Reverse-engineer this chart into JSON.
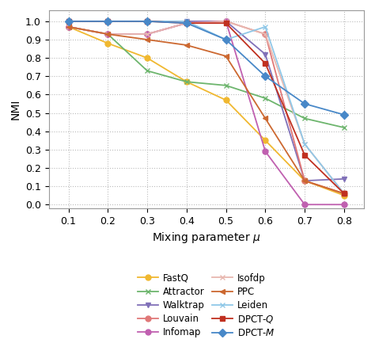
{
  "x": [
    0.1,
    0.2,
    0.3,
    0.4,
    0.5,
    0.6,
    0.7,
    0.8
  ],
  "series_order": [
    "FastQ",
    "Attractor",
    "Walktrap",
    "Louvain",
    "Infomap",
    "Isofdp",
    "PPC",
    "Leiden",
    "DPCT-Q",
    "DPCT-M"
  ],
  "series": {
    "FastQ": [
      0.97,
      0.88,
      0.8,
      0.67,
      0.57,
      0.35,
      0.13,
      0.05
    ],
    "Attractor": [
      0.97,
      0.93,
      0.73,
      0.67,
      0.65,
      0.58,
      0.47,
      0.42
    ],
    "Walktrap": [
      1.0,
      1.0,
      1.0,
      1.0,
      1.0,
      0.82,
      0.13,
      0.14
    ],
    "Louvain": [
      0.97,
      0.93,
      0.93,
      0.99,
      1.0,
      0.93,
      0.13,
      0.06
    ],
    "Infomap": [
      0.97,
      0.93,
      0.93,
      0.99,
      1.0,
      0.29,
      0.0,
      0.0
    ],
    "Isofdp": [
      0.97,
      0.93,
      0.93,
      0.99,
      1.0,
      0.93,
      0.33,
      0.06
    ],
    "PPC": [
      0.97,
      0.93,
      0.9,
      0.87,
      0.81,
      0.47,
      0.13,
      0.06
    ],
    "Leiden": [
      1.0,
      1.0,
      1.0,
      1.0,
      0.9,
      0.97,
      0.33,
      0.06
    ],
    "DPCT-Q": [
      1.0,
      1.0,
      1.0,
      0.99,
      0.99,
      0.77,
      0.27,
      0.06
    ],
    "DPCT-M": [
      1.0,
      1.0,
      1.0,
      0.99,
      0.9,
      0.7,
      0.55,
      0.49
    ]
  },
  "colors": {
    "FastQ": "#f0b830",
    "Attractor": "#6db56d",
    "Walktrap": "#8070b8",
    "Louvain": "#e07878",
    "Infomap": "#c060b0",
    "Isofdp": "#e8b8b0",
    "PPC": "#cc6830",
    "Leiden": "#90c8e8",
    "DPCT-Q": "#c03020",
    "DPCT-M": "#4888c8"
  },
  "markers": {
    "FastQ": "o",
    "Attractor": "x",
    "Walktrap": "v",
    "Louvain": "o",
    "Infomap": "o",
    "Isofdp": "x",
    "PPC": "<",
    "Leiden": "x",
    "DPCT-Q": "s",
    "DPCT-M": "D"
  },
  "legend_labels": {
    "FastQ": "FastQ",
    "Attractor": "Attractor",
    "Walktrap": "Walktrap",
    "Louvain": "Louvain",
    "Infomap": "Infomap",
    "Isofdp": "Isofdp",
    "PPC": "PPC",
    "Leiden": "Leiden",
    "DPCT-Q": "DPCT-$Q$",
    "DPCT-M": "DPCT-$M$"
  },
  "xlabel": "Mixing parameter $\\mu$",
  "ylabel": "NMI",
  "xlim": [
    0.05,
    0.85
  ],
  "ylim": [
    -0.02,
    1.06
  ],
  "xticks": [
    0.1,
    0.2,
    0.3,
    0.4,
    0.5,
    0.6,
    0.7,
    0.8
  ],
  "yticks": [
    0.0,
    0.1,
    0.2,
    0.3,
    0.4,
    0.5,
    0.6,
    0.7,
    0.8,
    0.9,
    1.0
  ],
  "background_color": "#ffffff",
  "grid_color": "#bbbbbb",
  "spine_color": "#999999",
  "markersize": 5,
  "linewidth": 1.3,
  "tick_fontsize": 9,
  "label_fontsize": 10,
  "legend_fontsize": 8.5
}
